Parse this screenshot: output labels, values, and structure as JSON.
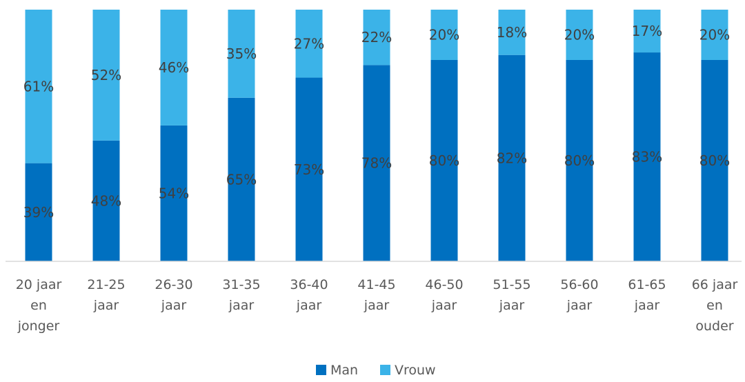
{
  "chart_data": {
    "type": "bar",
    "stacked": true,
    "percent": true,
    "categories": [
      [
        "20 jaar",
        "en",
        "jonger"
      ],
      [
        "21-25",
        "jaar"
      ],
      [
        "26-30",
        "jaar"
      ],
      [
        "31-35",
        "jaar"
      ],
      [
        "36-40",
        "jaar"
      ],
      [
        "41-45",
        "jaar"
      ],
      [
        "46-50",
        "jaar"
      ],
      [
        "51-55",
        "jaar"
      ],
      [
        "56-60",
        "jaar"
      ],
      [
        "61-65",
        "jaar"
      ],
      [
        "66 jaar",
        "en",
        "ouder"
      ]
    ],
    "series": [
      {
        "name": "Man",
        "color": "#0070C0",
        "values": [
          39,
          48,
          54,
          65,
          73,
          78,
          80,
          82,
          80,
          83,
          80
        ]
      },
      {
        "name": "Vrouw",
        "color": "#3BB3E8",
        "values": [
          61,
          52,
          46,
          35,
          27,
          22,
          20,
          18,
          20,
          17,
          20
        ]
      }
    ],
    "data_labels": {
      "Man": [
        "39%",
        "48%",
        "54%",
        "65%",
        "73%",
        "78%",
        "80%",
        "82%",
        "80%",
        "83%",
        "80%"
      ],
      "Vrouw": [
        "61%",
        "52%",
        "46%",
        "35%",
        "27%",
        "22%",
        "20%",
        "18%",
        "20%",
        "17%",
        "20%"
      ]
    },
    "ylim": [
      0,
      100
    ],
    "grid": false,
    "legend": "bottom"
  }
}
